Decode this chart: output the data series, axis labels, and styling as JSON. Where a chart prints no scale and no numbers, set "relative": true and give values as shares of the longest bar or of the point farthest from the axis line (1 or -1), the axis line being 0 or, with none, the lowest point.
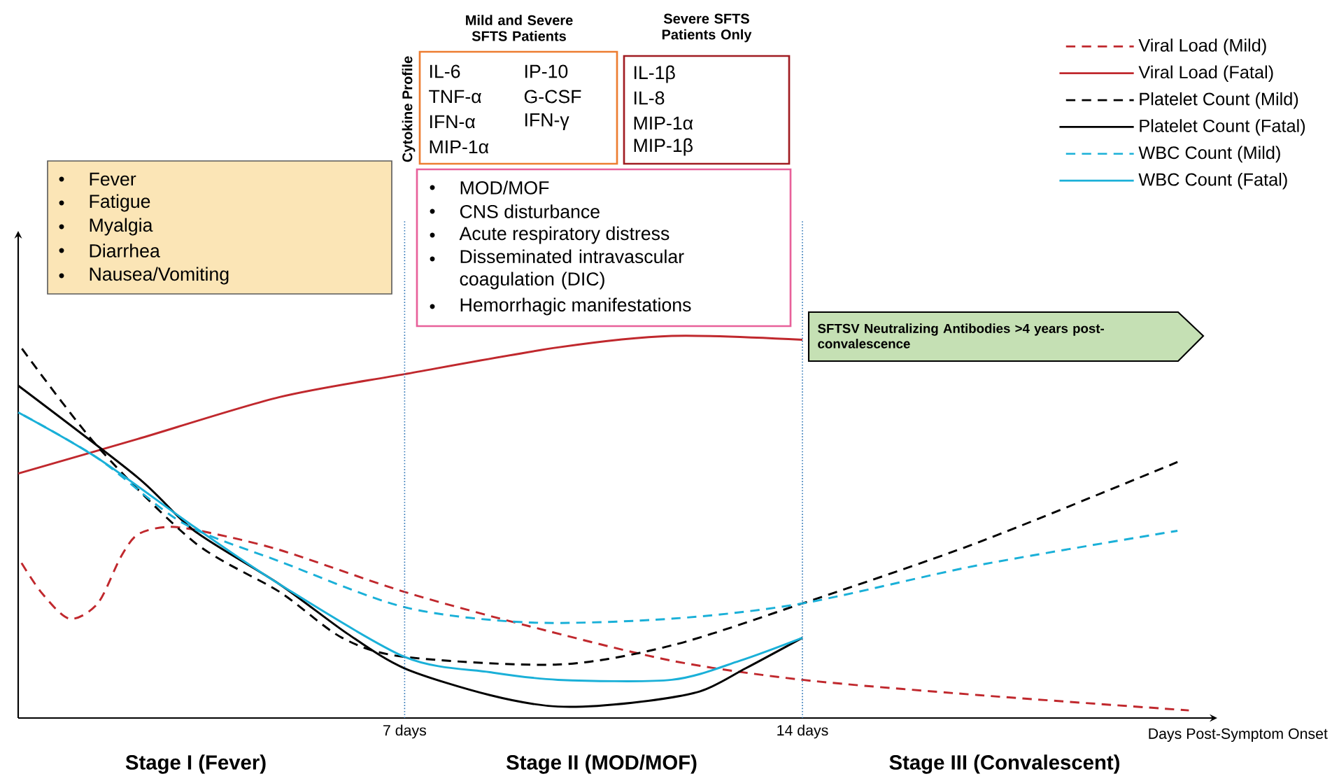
{
  "chart_data": {
    "type": "line",
    "relative": true,
    "xlabel": "Days Post-Symptom Onset",
    "xlim": [
      0.2,
      21.3
    ],
    "xticks": [
      {
        "value": 7,
        "label": "7 days"
      },
      {
        "value": 14,
        "label": "14 days"
      }
    ],
    "legend": "top right",
    "ref_lines": [
      {
        "axis": "x",
        "value": 7,
        "color": "#2e75b6",
        "line_style": "dotted"
      },
      {
        "axis": "x",
        "value": 14,
        "color": "#2e75b6",
        "line_style": "dotted"
      }
    ],
    "series": [
      {
        "name": "Viral Load (Mild)",
        "color": "#c0282d",
        "line_style": "dashed",
        "x": [
          0.2,
          0.6,
          1.1,
          1.6,
          2.0,
          2.3,
          2.8,
          3.4,
          4.8,
          7.0,
          9.2,
          11.7,
          14.0,
          17.1,
          20.8
        ],
        "values": [
          0.42,
          0.33,
          0.26,
          0.3,
          0.42,
          0.48,
          0.5,
          0.49,
          0.44,
          0.33,
          0.24,
          0.15,
          0.1,
          0.06,
          0.02
        ]
      },
      {
        "name": "Viral Load (Fatal)",
        "color": "#c0282d",
        "line_style": "solid",
        "x": [
          0.2,
          2.3,
          4.8,
          7.0,
          9.7,
          11.7,
          14.0
        ],
        "values": [
          0.64,
          0.73,
          0.84,
          0.9,
          0.97,
          1,
          0.99
        ]
      },
      {
        "name": "Platelet Count (Mild)",
        "color": "#000000",
        "line_style": "dashed",
        "x": [
          0.2,
          1.6,
          3.3,
          4.8,
          5.9,
          7.0,
          9.7,
          11.7,
          14.0,
          17.1,
          20.6
        ],
        "values": [
          0.98,
          0.71,
          0.46,
          0.33,
          0.21,
          0.16,
          0.14,
          0.19,
          0.3,
          0.46,
          0.67
        ]
      },
      {
        "name": "Platelet Count (Fatal)",
        "color": "#000000",
        "line_style": "solid",
        "x": [
          0.2,
          2.3,
          3.3,
          4.8,
          6.0,
          7.0,
          8.5,
          9.7,
          11.0,
          12.2,
          13.0,
          14.0
        ],
        "values": [
          0.87,
          0.63,
          0.49,
          0.35,
          0.22,
          0.13,
          0.06,
          0.03,
          0.04,
          0.07,
          0.13,
          0.21
        ]
      },
      {
        "name": "WBC Count (Mild)",
        "color": "#1ab0d8",
        "line_style": "dashed",
        "x": [
          0.2,
          1.6,
          3.1,
          4.8,
          7.0,
          9.2,
          11.7,
          14.0,
          17.1,
          20.6
        ],
        "values": [
          0.8,
          0.68,
          0.51,
          0.41,
          0.29,
          0.25,
          0.26,
          0.3,
          0.4,
          0.49
        ]
      },
      {
        "name": "WBC Count (Fatal)",
        "color": "#1ab0d8",
        "line_style": "solid",
        "x": [
          0.2,
          1.6,
          3.3,
          4.8,
          7.0,
          8.5,
          9.7,
          11.7,
          12.9,
          14.0
        ],
        "values": [
          0.8,
          0.68,
          0.5,
          0.35,
          0.16,
          0.12,
          0.1,
          0.1,
          0.15,
          0.21
        ]
      }
    ],
    "annotations": [
      "Stage I (Fever)",
      "Stage II (MOD/MOF)",
      "Stage III (Convalescent)",
      "Cytokine Profile",
      "Mild and Severe SFTS Patients",
      "Severe SFTS Patients Only",
      "IL-6",
      "TNF-α",
      "IFN-α",
      "MIP-1α",
      "IP-10",
      "G-CSF",
      "IFN-γ",
      "IL-1β",
      "IL-8",
      "MIP-1α",
      "MIP-1β",
      "Fever",
      "Fatigue",
      "Myalgia",
      "Diarrhea",
      "Nausea/Vomiting",
      "MOD/MOF",
      "CNS disturbance",
      "Acute respiratory distress",
      "Disseminated intravascular coagulation (DIC)",
      "Hemorrhagic manifestations",
      "SFTSV Neutralizing Antibodies >4 years post-convalescence"
    ]
  }
}
